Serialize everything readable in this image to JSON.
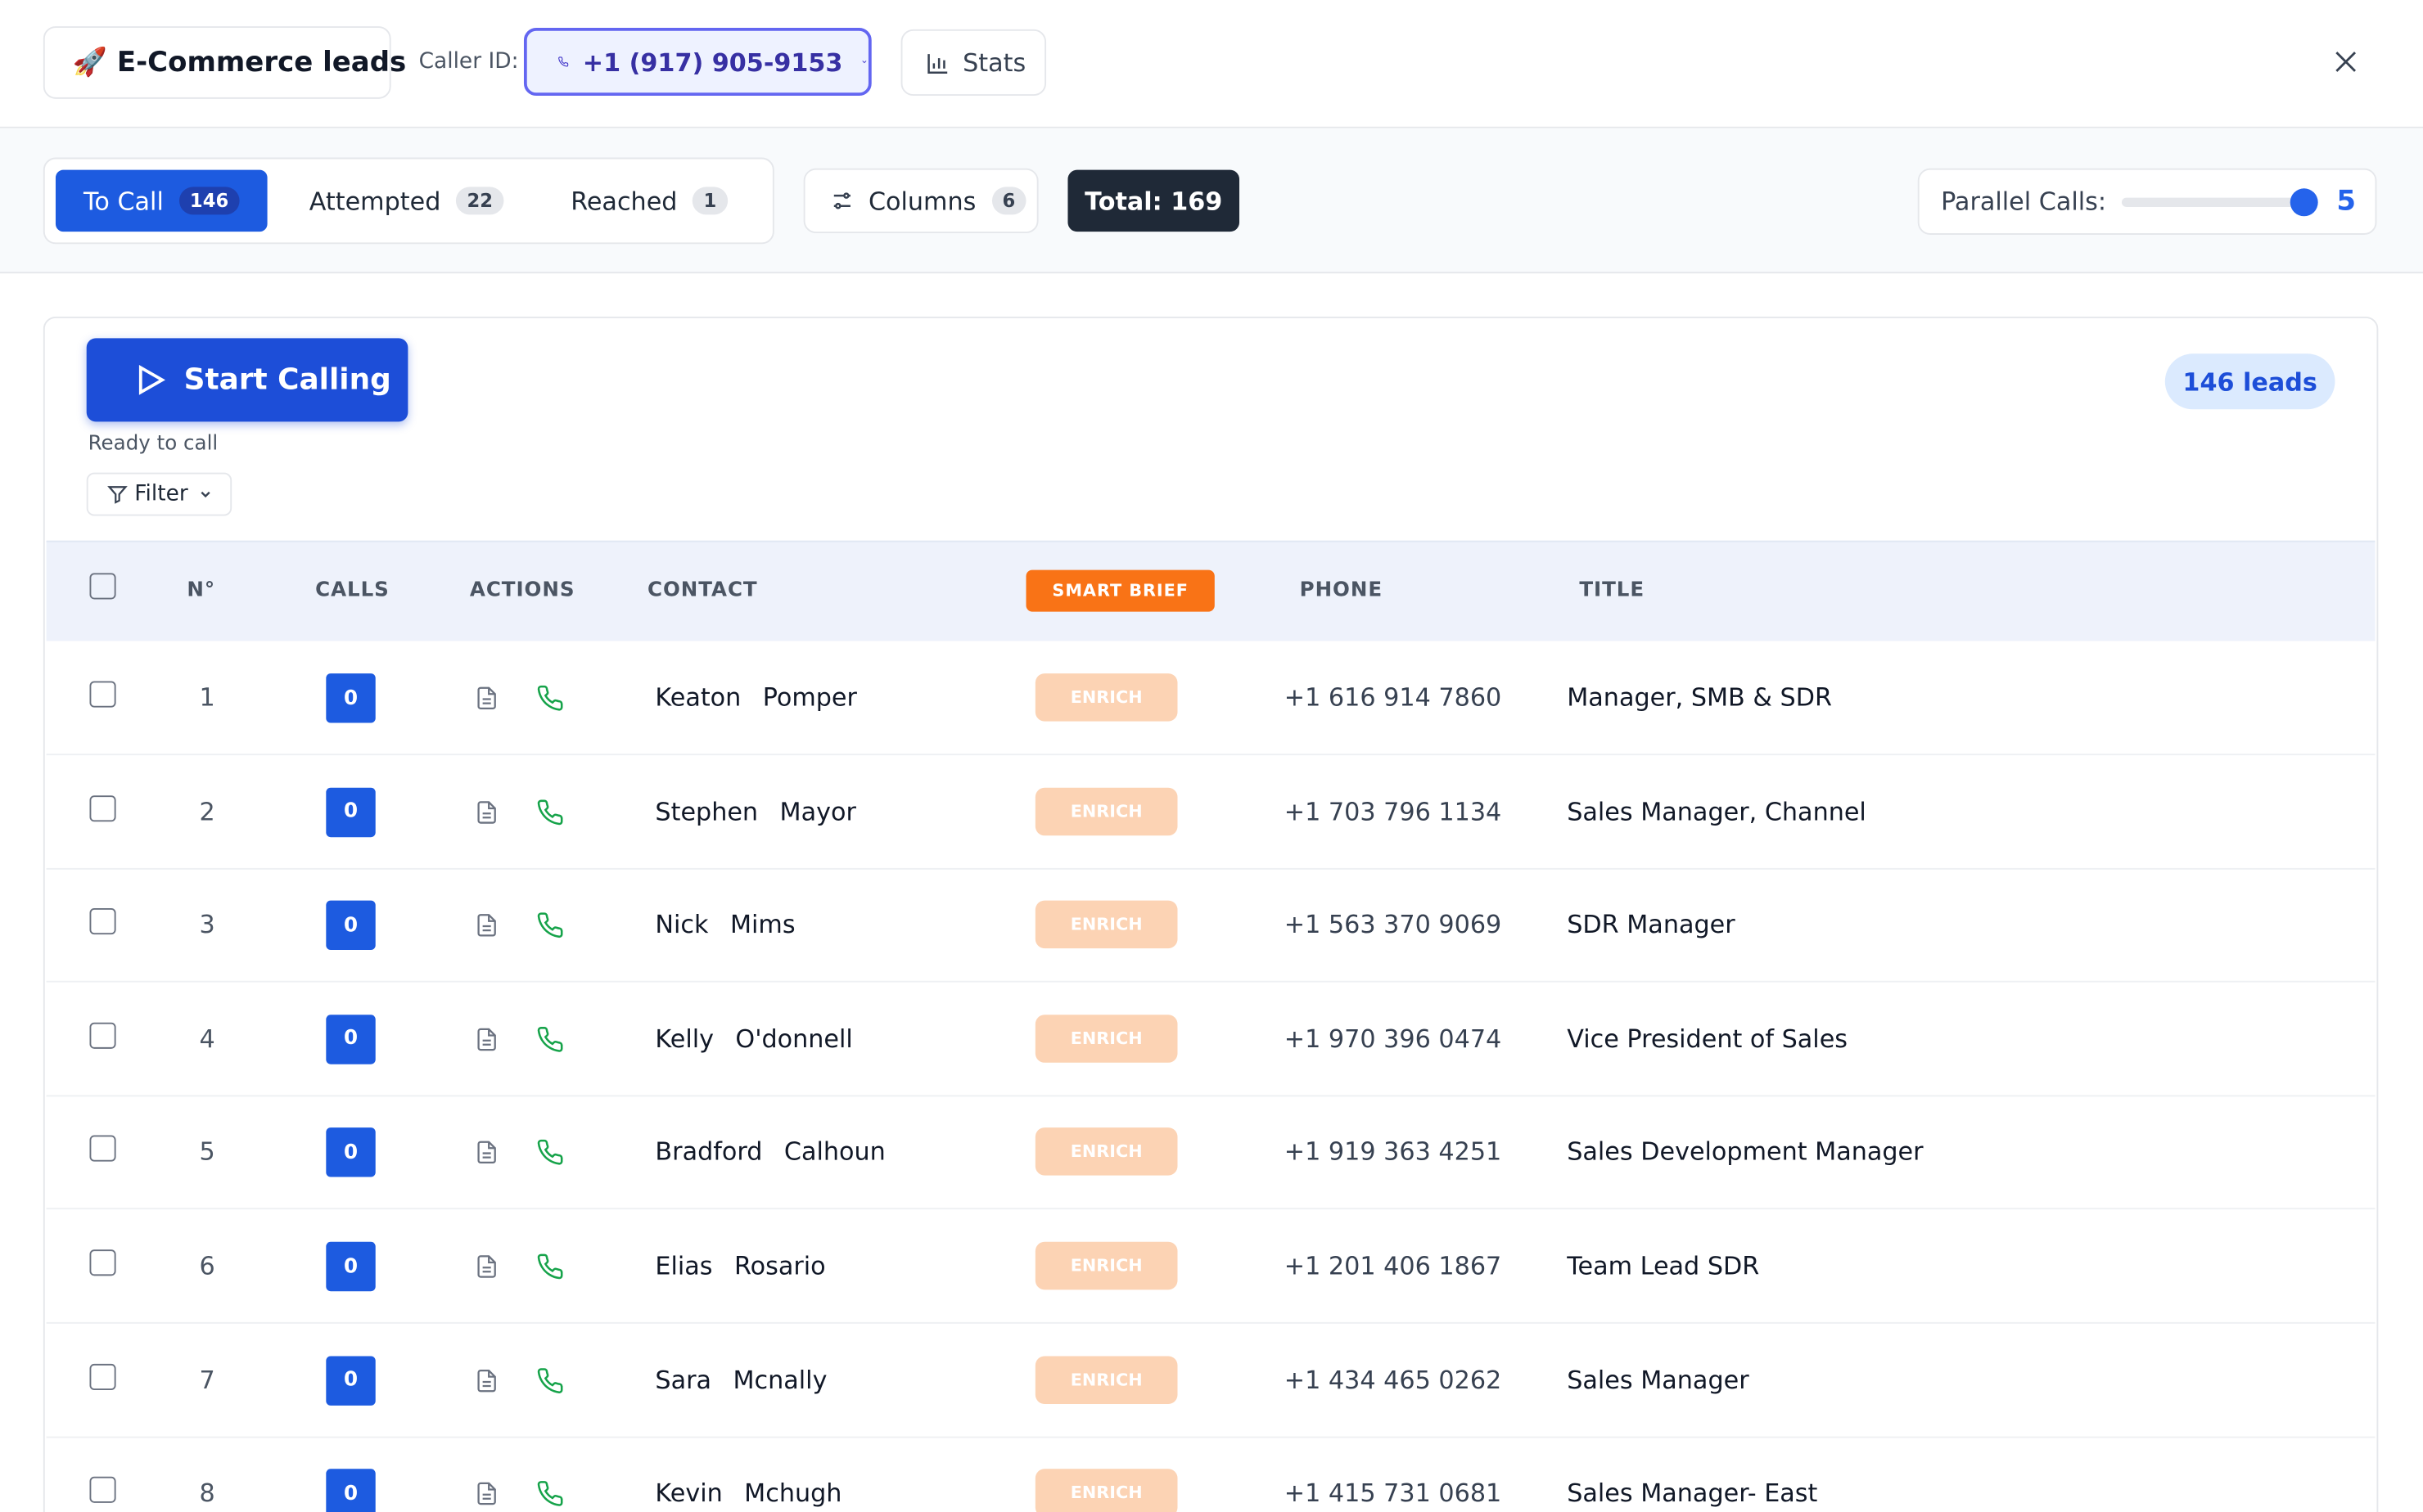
{
  "header": {
    "list_name": "🚀 E-Commerce leads",
    "caller_id_label": "Caller ID:",
    "caller_id": "+1 (917) 905-9153",
    "stats": "Stats"
  },
  "toolbar": {
    "tabs": [
      {
        "label": "To Call",
        "count": "146"
      },
      {
        "label": "Attempted",
        "count": "22"
      },
      {
        "label": "Reached",
        "count": "1"
      }
    ],
    "columns": {
      "label": "Columns",
      "count": "6"
    },
    "total": "Total: 169",
    "parallel_label": "Parallel Calls:",
    "parallel_value": "5"
  },
  "panel": {
    "start": "Start Calling",
    "status": "Ready to call",
    "filter": "Filter",
    "lead_count": "146 leads"
  },
  "table": {
    "headers": [
      "N°",
      "CALLS",
      "ACTIONS",
      "CONTACT",
      "SMART BRIEF",
      "PHONE",
      "TITLE"
    ],
    "rows": [
      {
        "n": "1",
        "calls": "0",
        "enrich": "ENRICH",
        "first": "Keaton",
        "last": "Pomper",
        "phone": "+1 616 914 7860",
        "title": "Manager, SMB & SDR"
      },
      {
        "n": "2",
        "calls": "0",
        "enrich": "ENRICH",
        "first": "Stephen",
        "last": "Mayor",
        "phone": "+1 703 796 1134",
        "title": "Sales Manager, Channel"
      },
      {
        "n": "3",
        "calls": "0",
        "enrich": "ENRICH",
        "first": "Nick",
        "last": "Mims",
        "phone": "+1 563 370 9069",
        "title": "SDR Manager"
      },
      {
        "n": "4",
        "calls": "0",
        "enrich": "ENRICH",
        "first": "Kelly",
        "last": "O'donnell",
        "phone": "+1 970 396 0474",
        "title": "Vice President of Sales"
      },
      {
        "n": "5",
        "calls": "0",
        "enrich": "ENRICH",
        "first": "Bradford",
        "last": "Calhoun",
        "phone": "+1 919 363 4251",
        "title": "Sales Development Manager"
      },
      {
        "n": "6",
        "calls": "0",
        "enrich": "ENRICH",
        "first": "Elias",
        "last": "Rosario",
        "phone": "+1 201 406 1867",
        "title": "Team Lead SDR"
      },
      {
        "n": "7",
        "calls": "0",
        "enrich": "ENRICH",
        "first": "Sara",
        "last": "Mcnally",
        "phone": "+1 434 465 0262",
        "title": "Sales Manager"
      },
      {
        "n": "8",
        "calls": "0",
        "enrich": "ENRICH",
        "first": "Kevin",
        "last": "Mchugh",
        "phone": "+1 415 731 0681",
        "title": "Sales Manager- East"
      }
    ]
  }
}
